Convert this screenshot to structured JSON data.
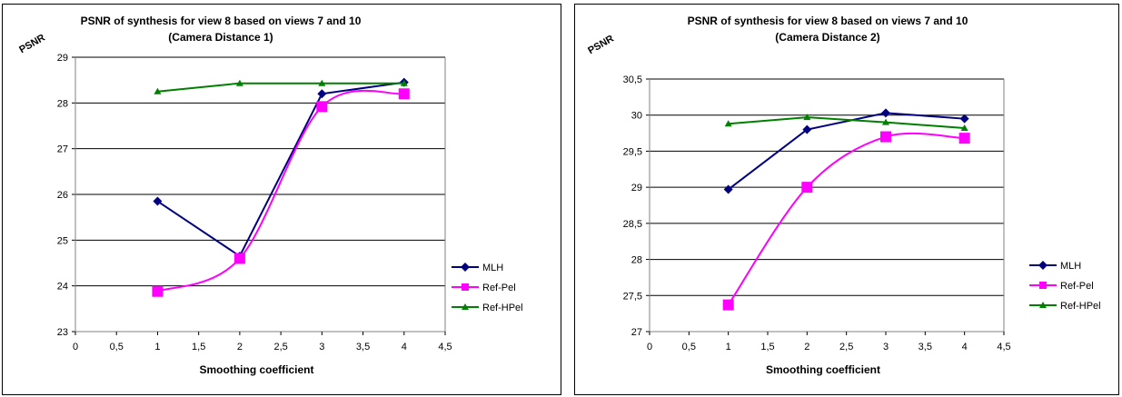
{
  "chart_data": [
    {
      "type": "line",
      "title": "PSNR of synthesis for view 8 based on views 7 and 10",
      "subtitle": "(Camera Distance 1)",
      "ylabel": "PSNR",
      "xlabel": "Smoothing coefficient",
      "xlim": [
        0,
        4.5
      ],
      "ylim": [
        23,
        29
      ],
      "x_ticks": [
        "0",
        "0,5",
        "1",
        "1,5",
        "2",
        "2,5",
        "3",
        "3,5",
        "4",
        "4,5"
      ],
      "y_ticks": [
        "23",
        "24",
        "25",
        "26",
        "27",
        "28",
        "29"
      ],
      "grid": "horizontal",
      "legend_position": "right",
      "series": [
        {
          "name": "MLH",
          "color": "#000080",
          "marker": "diamond",
          "smooth": false,
          "x": [
            1,
            2,
            3,
            4
          ],
          "y": [
            25.85,
            24.65,
            28.2,
            28.45
          ]
        },
        {
          "name": "Ref-Pel",
          "color": "#FF00FF",
          "marker": "square",
          "smooth": true,
          "x": [
            1,
            2,
            3,
            4
          ],
          "y": [
            23.88,
            24.6,
            27.92,
            28.2
          ]
        },
        {
          "name": "Ref-HPel",
          "color": "#008000",
          "marker": "triangle",
          "smooth": false,
          "x": [
            1,
            2,
            3,
            4
          ],
          "y": [
            28.25,
            28.43,
            28.43,
            28.43
          ]
        }
      ]
    },
    {
      "type": "line",
      "title": "PSNR of synthesis for view 8 based on views 7 and 10",
      "subtitle": "(Camera Distance 2)",
      "ylabel": "PSNR",
      "xlabel": "Smoothing coefficient",
      "xlim": [
        0,
        4.5
      ],
      "ylim": [
        27,
        30.5
      ],
      "x_ticks": [
        "0",
        "0,5",
        "1",
        "1,5",
        "2",
        "2,5",
        "3",
        "3,5",
        "4",
        "4,5"
      ],
      "y_ticks": [
        "27",
        "27,5",
        "28",
        "28,5",
        "29",
        "29,5",
        "30",
        "30,5"
      ],
      "grid": "horizontal",
      "legend_position": "right",
      "series": [
        {
          "name": "MLH",
          "color": "#000080",
          "marker": "diamond",
          "smooth": false,
          "x": [
            1,
            2,
            3,
            4
          ],
          "y": [
            28.97,
            29.8,
            30.03,
            29.95
          ]
        },
        {
          "name": "Ref-Pel",
          "color": "#FF00FF",
          "marker": "square",
          "smooth": true,
          "x": [
            1,
            2,
            3,
            4
          ],
          "y": [
            27.37,
            29.0,
            29.7,
            29.68
          ]
        },
        {
          "name": "Ref-HPel",
          "color": "#008000",
          "marker": "triangle",
          "smooth": false,
          "x": [
            1,
            2,
            3,
            4
          ],
          "y": [
            29.88,
            29.97,
            29.9,
            29.82
          ]
        }
      ]
    }
  ]
}
